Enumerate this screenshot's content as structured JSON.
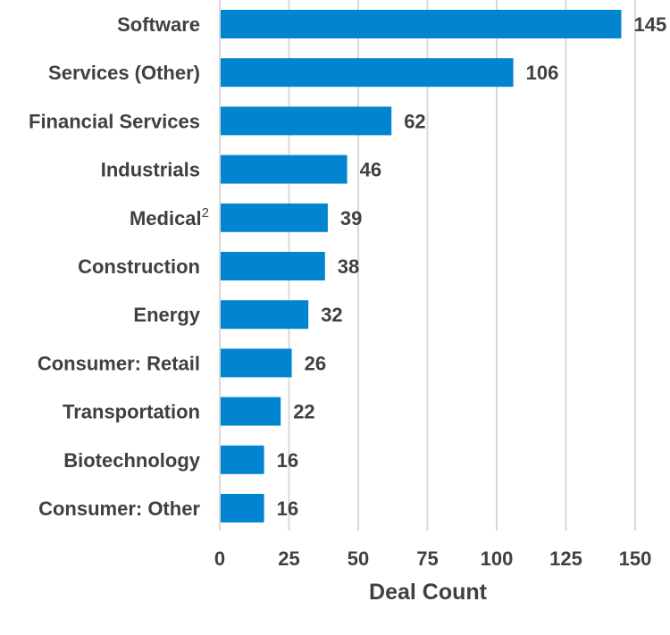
{
  "chart_data": {
    "type": "bar",
    "orientation": "horizontal",
    "title": "",
    "xlabel": "Deal Count",
    "ylabel": "",
    "xlim": [
      0,
      150
    ],
    "xticks": [
      0,
      25,
      50,
      75,
      100,
      125,
      150
    ],
    "grid": "vertical",
    "bar_color": "#0285D0",
    "categories": [
      "Software",
      "Services (Other)",
      "Financial Services",
      "Industrials",
      "Medical",
      "Construction",
      "Energy",
      "Consumer: Retail",
      "Transportation",
      "Biotechnology",
      "Consumer: Other"
    ],
    "category_superscripts": [
      "",
      "",
      "",
      "",
      "2",
      "",
      "",
      "",
      "",
      "",
      ""
    ],
    "values": [
      145,
      106,
      62,
      46,
      39,
      38,
      32,
      26,
      22,
      16,
      16
    ]
  }
}
